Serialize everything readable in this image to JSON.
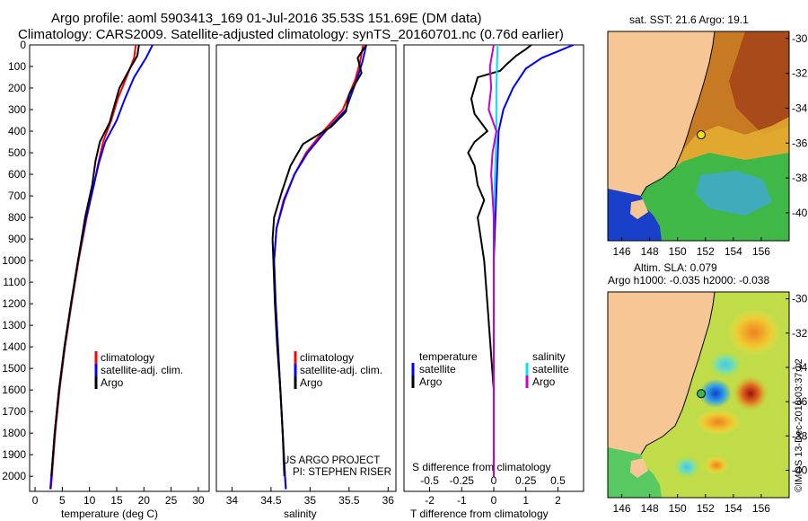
{
  "header": {
    "title_line1": "Argo profile: aoml 5903413_169 01-Jul-2016 35.53S 151.69E (DM data)",
    "title_line2": "Climatology: CARS2009. Satellite-adjusted climatology: synTS_20160701.nc (0.76d earlier)"
  },
  "colors": {
    "climatology": "#ff0000",
    "satellite": "#0000ff",
    "argo": "#000000",
    "satellite_s": "#00e5f0",
    "argo_s": "#cc00cc",
    "land": "#f7c695"
  },
  "chart_data": [
    {
      "type": "line",
      "name": "temperature-profile",
      "xlabel": "temperature (deg C)",
      "ylabel": "",
      "xlim": [
        -1,
        32
      ],
      "ylim": [
        2070,
        0
      ],
      "xticks": [
        0,
        5,
        10,
        15,
        20,
        25,
        30
      ],
      "yticks": [
        0,
        100,
        200,
        300,
        400,
        500,
        600,
        700,
        800,
        900,
        1000,
        1100,
        1200,
        1300,
        1400,
        1500,
        1600,
        1700,
        1800,
        1900,
        2000
      ],
      "legend": [
        "climatology",
        "satellite-adj. clim.",
        "Argo"
      ],
      "series": [
        {
          "name": "climatology",
          "color": "#ff0000",
          "points": [
            [
              18.5,
              0
            ],
            [
              18.2,
              60
            ],
            [
              16.8,
              150
            ],
            [
              15.2,
              250
            ],
            [
              14.0,
              350
            ],
            [
              12.5,
              450
            ],
            [
              11.6,
              550
            ],
            [
              10.8,
              650
            ],
            [
              9.5,
              800
            ],
            [
              8.0,
              1000
            ],
            [
              6.7,
              1200
            ],
            [
              5.5,
              1400
            ],
            [
              4.5,
              1600
            ],
            [
              3.7,
              1800
            ],
            [
              3.1,
              2000
            ],
            [
              2.9,
              2060
            ]
          ]
        },
        {
          "name": "satellite-adj. clim.",
          "color": "#0000ff",
          "points": [
            [
              21.6,
              0
            ],
            [
              20.4,
              60
            ],
            [
              18.2,
              150
            ],
            [
              16.5,
              250
            ],
            [
              15.0,
              350
            ],
            [
              12.9,
              450
            ],
            [
              11.7,
              550
            ],
            [
              10.8,
              650
            ],
            [
              9.4,
              800
            ],
            [
              7.9,
              1000
            ],
            [
              6.6,
              1200
            ],
            [
              5.4,
              1400
            ],
            [
              4.4,
              1600
            ],
            [
              3.6,
              1800
            ],
            [
              3.0,
              2000
            ],
            [
              2.8,
              2060
            ]
          ]
        },
        {
          "name": "Argo",
          "color": "#000000",
          "points": [
            [
              19.1,
              0
            ],
            [
              18.8,
              50
            ],
            [
              17.2,
              120
            ],
            [
              15.5,
              200
            ],
            [
              14.6,
              280
            ],
            [
              13.7,
              360
            ],
            [
              11.9,
              450
            ],
            [
              11.1,
              540
            ],
            [
              10.5,
              650
            ],
            [
              9.2,
              800
            ],
            [
              7.9,
              1000
            ],
            [
              6.6,
              1200
            ],
            [
              5.4,
              1400
            ],
            [
              4.4,
              1600
            ],
            [
              3.6,
              1800
            ],
            [
              3.0,
              2000
            ]
          ]
        }
      ]
    },
    {
      "type": "line",
      "name": "salinity-profile",
      "xlabel": "salinity",
      "ylabel": "",
      "xlim": [
        33.8,
        36.1
      ],
      "ylim": [
        2070,
        0
      ],
      "xticks": [
        34,
        34.5,
        35,
        35.5,
        36
      ],
      "legend": [
        "climatology",
        "satellite-adj. clim.",
        "Argo"
      ],
      "annotation": [
        "US ARGO PROJECT",
        "PI: STEPHEN RISER"
      ],
      "series": [
        {
          "name": "climatology",
          "color": "#ff0000",
          "points": [
            [
              35.68,
              0
            ],
            [
              35.64,
              80
            ],
            [
              35.58,
              160
            ],
            [
              35.42,
              300
            ],
            [
              35.17,
              400
            ],
            [
              34.95,
              500
            ],
            [
              34.8,
              600
            ],
            [
              34.66,
              720
            ],
            [
              34.57,
              850
            ],
            [
              34.54,
              1000
            ],
            [
              34.56,
              1200
            ],
            [
              34.59,
              1400
            ],
            [
              34.62,
              1600
            ],
            [
              34.65,
              1800
            ],
            [
              34.68,
              2000
            ],
            [
              34.69,
              2060
            ]
          ]
        },
        {
          "name": "satellite-adj. clim.",
          "color": "#0000ff",
          "points": [
            [
              35.72,
              0
            ],
            [
              35.67,
              80
            ],
            [
              35.6,
              160
            ],
            [
              35.46,
              300
            ],
            [
              35.2,
              400
            ],
            [
              34.97,
              500
            ],
            [
              34.8,
              600
            ],
            [
              34.67,
              720
            ],
            [
              34.57,
              850
            ],
            [
              34.54,
              1000
            ],
            [
              34.56,
              1200
            ],
            [
              34.59,
              1400
            ],
            [
              34.62,
              1600
            ],
            [
              34.65,
              1800
            ],
            [
              34.68,
              2000
            ],
            [
              34.69,
              2060
            ]
          ]
        },
        {
          "name": "Argo",
          "color": "#000000",
          "points": [
            [
              35.72,
              0
            ],
            [
              35.61,
              60
            ],
            [
              35.66,
              130
            ],
            [
              35.5,
              230
            ],
            [
              35.46,
              310
            ],
            [
              35.27,
              380
            ],
            [
              34.91,
              460
            ],
            [
              34.75,
              560
            ],
            [
              34.64,
              680
            ],
            [
              34.54,
              800
            ],
            [
              34.52,
              900
            ],
            [
              34.53,
              1000
            ],
            [
              34.55,
              1200
            ],
            [
              34.58,
              1400
            ],
            [
              34.62,
              1600
            ],
            [
              34.65,
              1800
            ],
            [
              34.67,
              2000
            ]
          ]
        }
      ]
    },
    {
      "type": "line",
      "name": "difference-profile",
      "xlabel": "T difference from climatology",
      "xlabel2": "S difference from climatology",
      "ylabel": "",
      "xlim": [
        -2.8,
        2.8
      ],
      "ylim": [
        2070,
        0
      ],
      "xticks": [
        -2,
        -1,
        0,
        1,
        2
      ],
      "xticks2": [
        "-0.5",
        "-0.25",
        "0",
        "0.25",
        "0.5"
      ],
      "legend_temperature": [
        "temperature",
        "satellite",
        "Argo"
      ],
      "legend_salinity": [
        "salinity",
        "satellite",
        "Argo"
      ],
      "series": [
        {
          "name": "T satellite",
          "color": "#0000ff",
          "points": [
            [
              2.8,
              -20
            ],
            [
              2.0,
              30
            ],
            [
              1.5,
              60
            ],
            [
              1.0,
              110
            ],
            [
              0.6,
              200
            ],
            [
              0.3,
              300
            ],
            [
              0.15,
              400
            ],
            [
              0.1,
              600
            ],
            [
              0.05,
              800
            ],
            [
              0.0,
              1000
            ],
            [
              0.0,
              1500
            ],
            [
              0.0,
              2000
            ]
          ]
        },
        {
          "name": "T Argo",
          "color": "#000000",
          "points": [
            [
              1.3,
              -15
            ],
            [
              1.0,
              20
            ],
            [
              0.7,
              50
            ],
            [
              0.4,
              90
            ],
            [
              0.2,
              120
            ],
            [
              -0.5,
              150
            ],
            [
              -0.7,
              250
            ],
            [
              -0.6,
              320
            ],
            [
              -0.2,
              400
            ],
            [
              -0.6,
              450
            ],
            [
              -0.8,
              500
            ],
            [
              -0.6,
              560
            ],
            [
              -0.5,
              650
            ],
            [
              -0.3,
              720
            ],
            [
              -0.5,
              800
            ],
            [
              -0.4,
              900
            ],
            [
              -0.3,
              1000
            ],
            [
              -0.2,
              1200
            ],
            [
              -0.1,
              1400
            ],
            [
              0.0,
              1600
            ],
            [
              0.0,
              1800
            ],
            [
              0.0,
              2000
            ]
          ]
        },
        {
          "name": "S satellite",
          "color": "#00e5f0",
          "points": [
            [
              0.03,
              0
            ],
            [
              0.02,
              200
            ],
            [
              0.02,
              400
            ],
            [
              0.01,
              600
            ],
            [
              0.0,
              800
            ],
            [
              0.0,
              1000
            ],
            [
              0.0,
              1500
            ],
            [
              0.0,
              2000
            ]
          ]
        },
        {
          "name": "S Argo",
          "color": "#cc00cc",
          "points": [
            [
              0.0,
              0
            ],
            [
              -0.03,
              100
            ],
            [
              -0.02,
              200
            ],
            [
              -0.04,
              300
            ],
            [
              0.02,
              400
            ],
            [
              -0.01,
              500
            ],
            [
              -0.02,
              600
            ],
            [
              -0.01,
              700
            ],
            [
              0.0,
              800
            ],
            [
              0.0,
              1000
            ],
            [
              0.0,
              1500
            ],
            [
              0.0,
              2000
            ]
          ]
        }
      ]
    },
    {
      "type": "heatmap",
      "name": "sst-map",
      "title": "sat. SST: 21.6 Argo: 19.1",
      "xticks": [
        146,
        148,
        150,
        152,
        154,
        156
      ],
      "yticks": [
        -30,
        -32,
        -34,
        -36,
        -38,
        -40
      ],
      "xlim": [
        145,
        158
      ],
      "ylim": [
        -41.6,
        -29.6
      ],
      "marker": {
        "lon": 151.69,
        "lat": -35.53
      }
    },
    {
      "type": "heatmap",
      "name": "sla-map",
      "title": "Altim. SLA: 0.079",
      "subtitle": "Argo h1000: -0.035 h2000: -0.038",
      "xticks": [
        146,
        148,
        150,
        152,
        154,
        156
      ],
      "yticks": [
        -30,
        -32,
        -34,
        -36,
        -38,
        -40
      ],
      "xlim": [
        145,
        158
      ],
      "ylim": [
        -41.6,
        -29.6
      ],
      "marker": {
        "lon": 151.69,
        "lat": -35.53
      }
    }
  ],
  "credit": "©IMOS 13-Dec-2018 03:37:12"
}
